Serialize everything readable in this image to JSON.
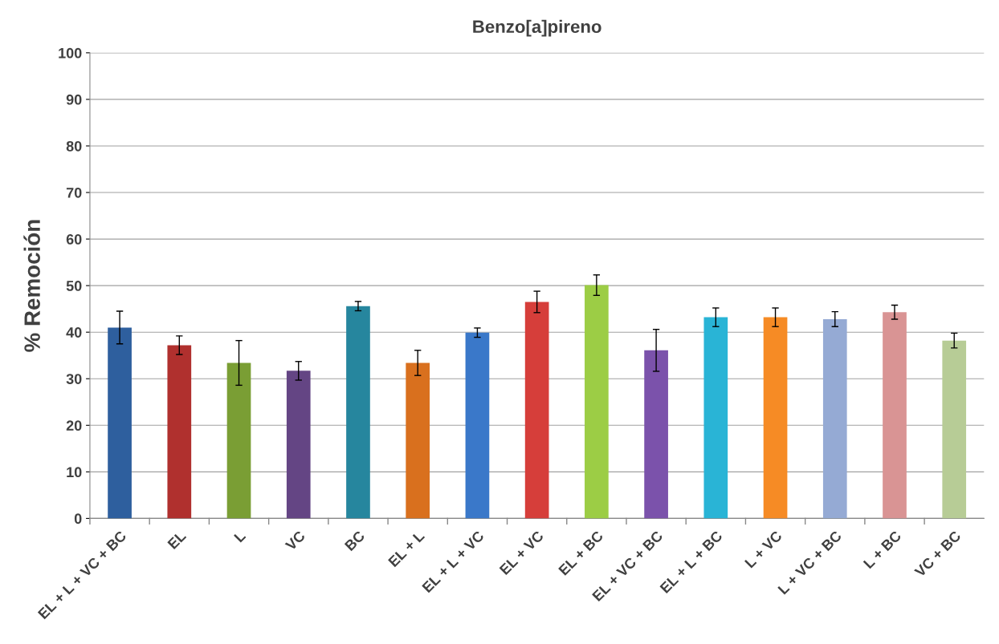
{
  "chart_data": {
    "type": "bar",
    "title": "Benzo[a]pireno",
    "ylabel": "% Remoción",
    "categories": [
      "EL + L + VC + BC",
      "EL",
      "L",
      "VC",
      "BC",
      "EL + L",
      "EL + L + VC",
      "EL + VC",
      "EL + BC",
      "EL + VC + BC",
      "EL + L + BC",
      "L + VC",
      "L + VC + BC",
      "L + BC",
      "VC + BC"
    ],
    "values": [
      41.0,
      37.2,
      33.4,
      31.7,
      45.6,
      33.4,
      39.9,
      46.5,
      50.1,
      36.1,
      43.2,
      43.2,
      42.8,
      44.3,
      38.2
    ],
    "errors": [
      3.5,
      2.0,
      4.8,
      2.0,
      1.0,
      2.7,
      1.0,
      2.3,
      2.2,
      4.5,
      2.0,
      2.0,
      1.6,
      1.5,
      1.6
    ],
    "colors": [
      "#2e5f9e",
      "#b0302e",
      "#7a9e34",
      "#644584",
      "#26869e",
      "#d9701e",
      "#3a78c9",
      "#d63e3a",
      "#9ccd45",
      "#7b52ab",
      "#29b4d6",
      "#f68b25",
      "#95aad4",
      "#d99494",
      "#b7cc96"
    ],
    "ylim": [
      0,
      100
    ],
    "yticks": [
      0,
      10,
      20,
      30,
      40,
      50,
      60,
      70,
      80,
      90,
      100
    ],
    "grid": "y"
  }
}
